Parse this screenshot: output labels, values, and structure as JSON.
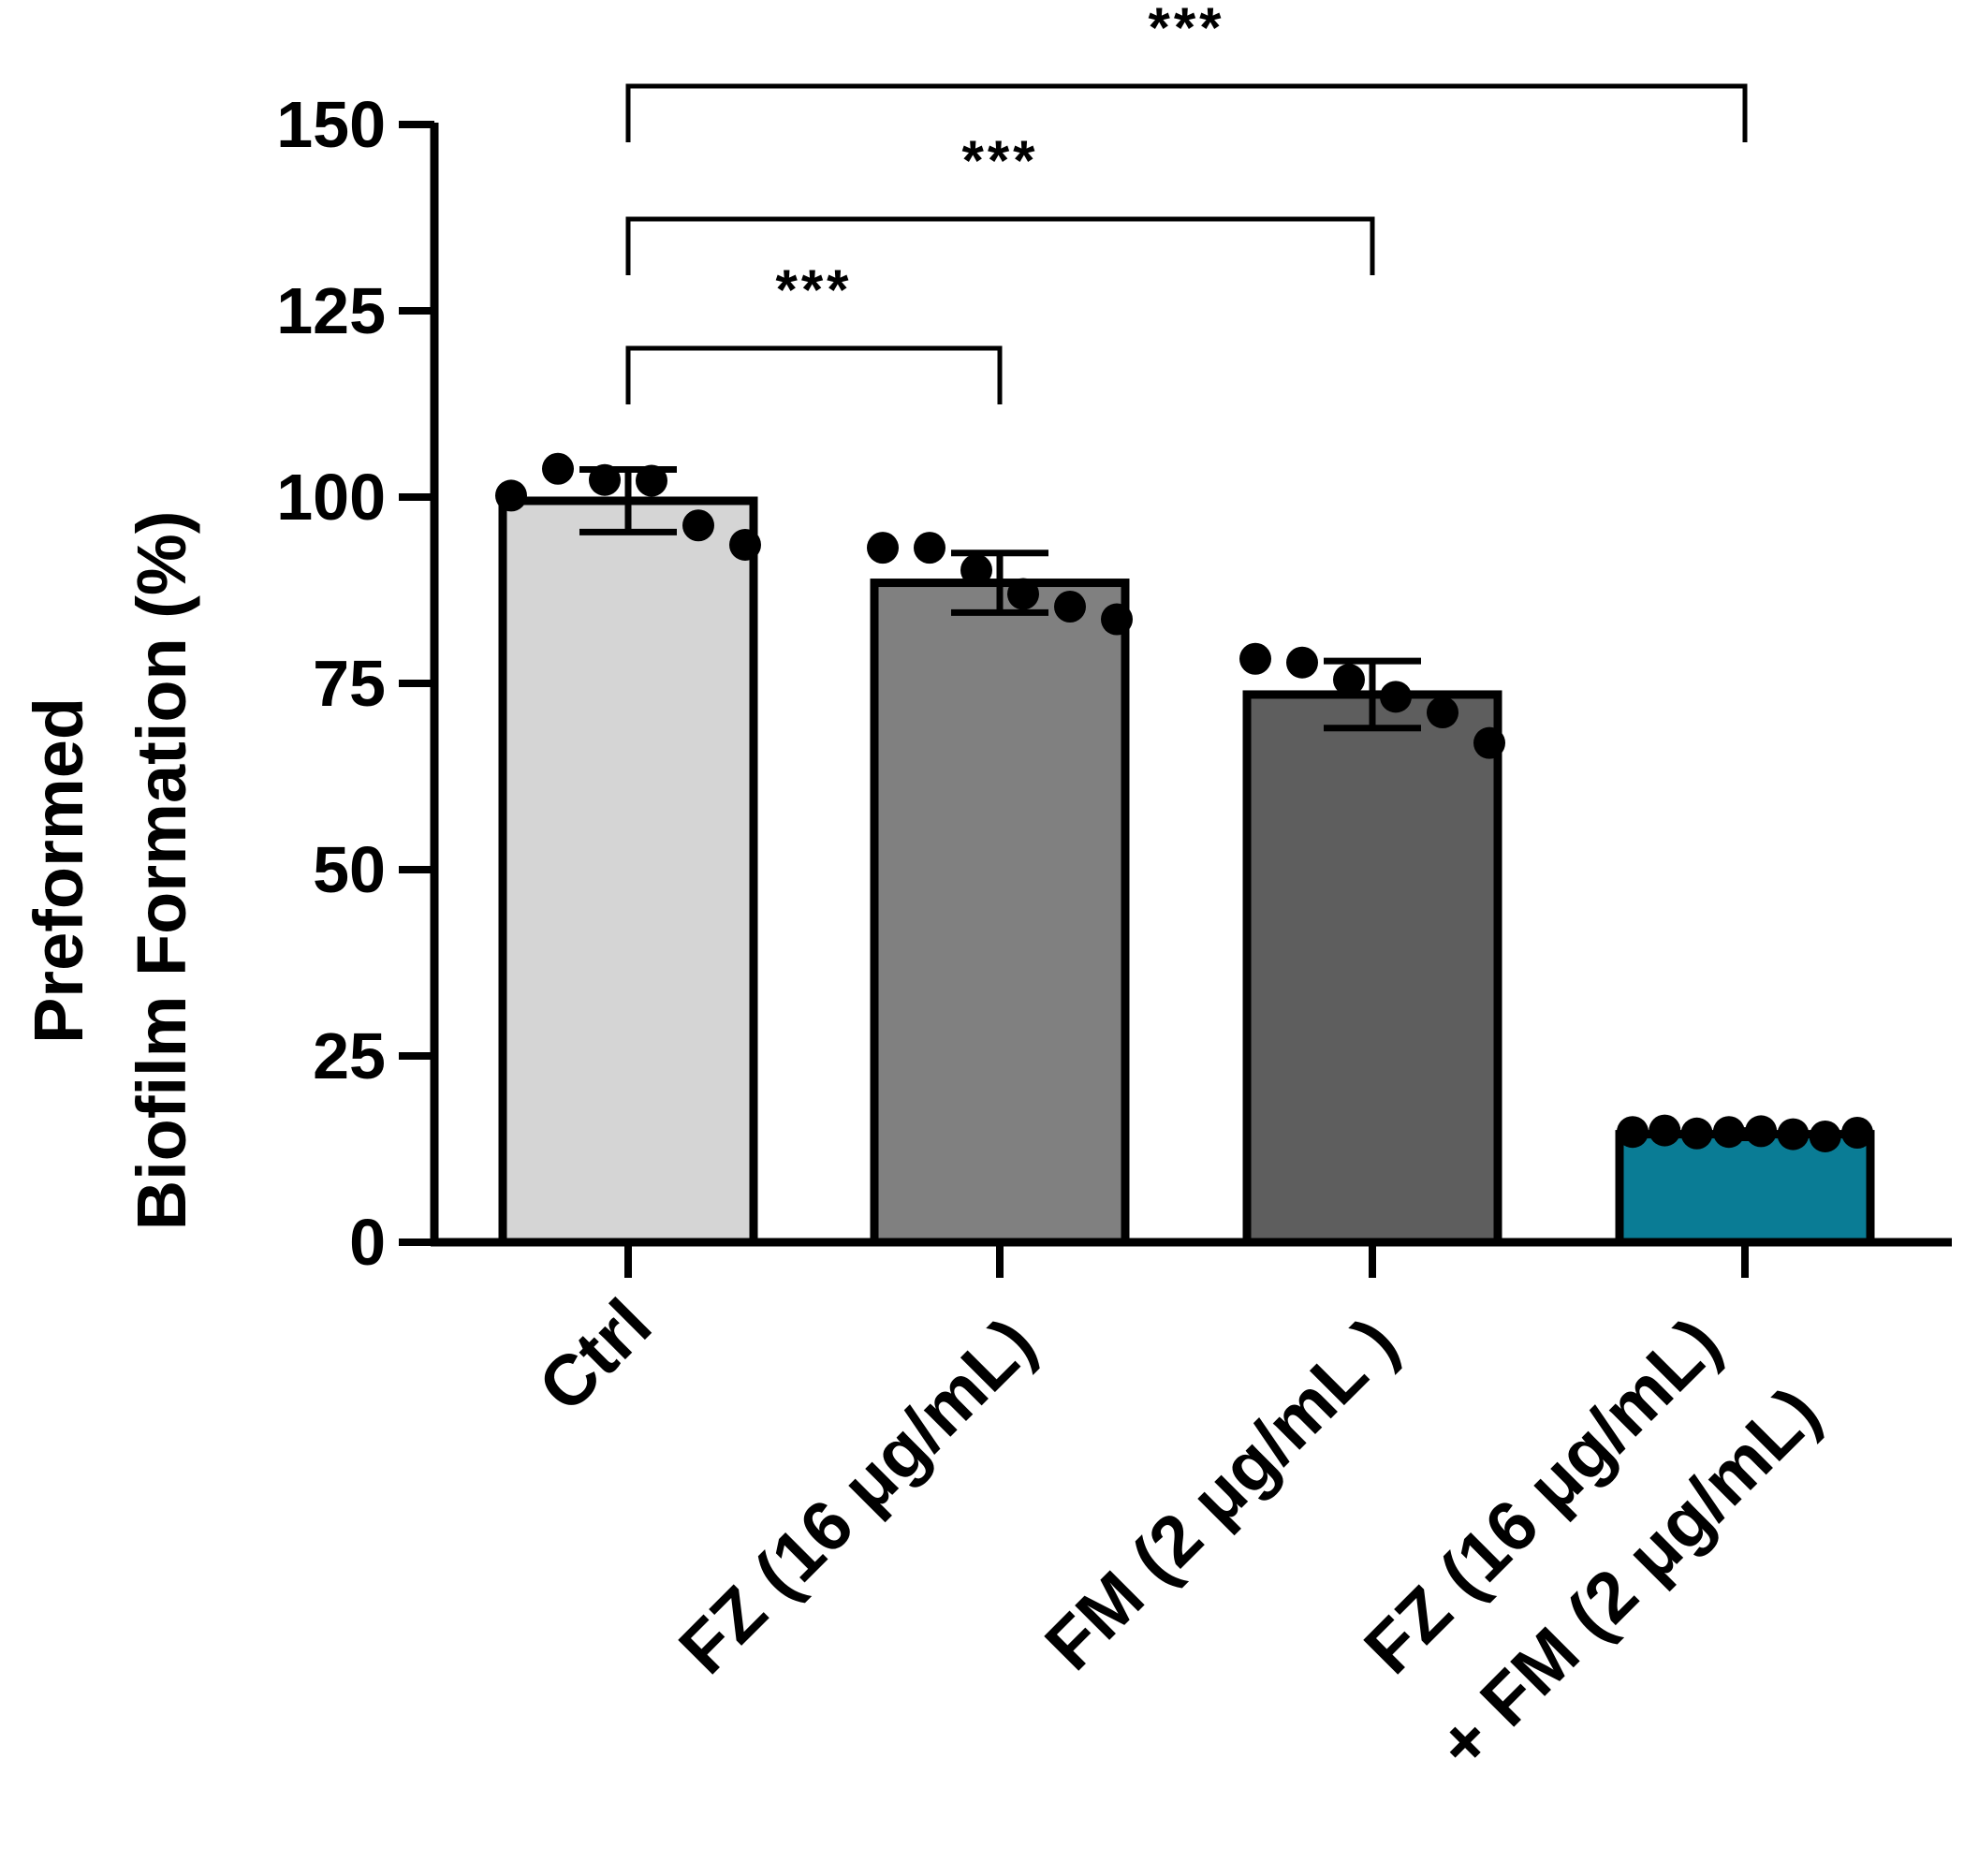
{
  "chart_data": {
    "type": "bar",
    "title": "",
    "xlabel": "",
    "ylabel_lines": [
      "Preformed",
      "Biofilm Formation (%)"
    ],
    "ylim": [
      0,
      150
    ],
    "yticks": [
      0,
      25,
      50,
      75,
      100,
      125,
      150
    ],
    "grid": false,
    "legend": "none",
    "categories": [
      [
        "Ctrl"
      ],
      [
        "FZ (16 μg/mL)"
      ],
      [
        "FM (2 μg/mL )"
      ],
      [
        "FZ (16 μg/mL)",
        "+ FM (2 μg/mL)"
      ]
    ],
    "values": [
      99.5,
      88.5,
      73.5,
      14.5
    ],
    "error_sd": [
      4.2,
      4.0,
      4.5,
      0.5
    ],
    "bar_colors": [
      "#d5d5d5",
      "#808080",
      "#5e5e5e",
      "#0a7c95"
    ],
    "points": [
      [
        100.2,
        103.8,
        102.3,
        102.2,
        96.2,
        93.6
      ],
      [
        93.2,
        93.2,
        90.2,
        87.0,
        85.3,
        83.6
      ],
      [
        78.3,
        77.8,
        75.5,
        73.2,
        71.1,
        67.0
      ],
      [
        14.8,
        15.0,
        14.6,
        14.8,
        14.9,
        14.5,
        14.2,
        14.7
      ]
    ],
    "comparisons": [
      {
        "from": 0,
        "to": 1,
        "label": "***"
      },
      {
        "from": 0,
        "to": 2,
        "label": "***"
      },
      {
        "from": 0,
        "to": 3,
        "label": "***"
      }
    ]
  }
}
